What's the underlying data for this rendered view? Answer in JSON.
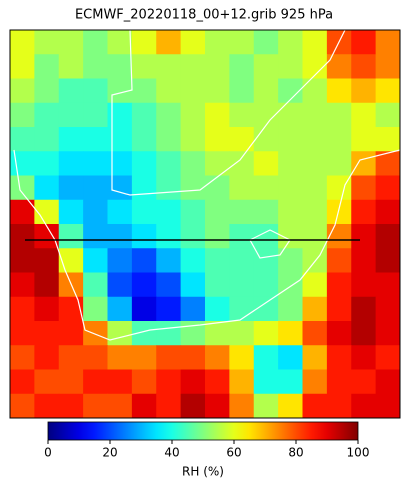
{
  "chart_data": {
    "type": "heatmap",
    "title": "ECMWF_20220118_00+12.grib 925 hPa",
    "colormap": "jet",
    "colorbar_label": "RH (%)",
    "clim": [
      0,
      100
    ],
    "cticks": [
      0,
      20,
      40,
      60,
      80,
      100
    ],
    "z": [
      [
        60,
        55,
        55,
        50,
        55,
        60,
        70,
        60,
        55,
        55,
        50,
        55,
        60,
        80,
        85,
        75
      ],
      [
        60,
        50,
        55,
        50,
        50,
        55,
        55,
        55,
        55,
        50,
        55,
        55,
        60,
        75,
        80,
        75
      ],
      [
        55,
        50,
        45,
        45,
        50,
        50,
        55,
        55,
        55,
        50,
        55,
        50,
        55,
        65,
        70,
        65
      ],
      [
        50,
        45,
        45,
        45,
        40,
        45,
        50,
        55,
        60,
        55,
        55,
        55,
        55,
        55,
        60,
        55
      ],
      [
        45,
        45,
        40,
        40,
        40,
        45,
        50,
        55,
        60,
        60,
        55,
        55,
        55,
        55,
        60,
        60
      ],
      [
        40,
        40,
        35,
        35,
        35,
        40,
        45,
        50,
        55,
        55,
        60,
        55,
        55,
        55,
        70,
        80
      ],
      [
        50,
        35,
        30,
        30,
        30,
        40,
        45,
        50,
        50,
        55,
        55,
        55,
        55,
        60,
        80,
        85
      ],
      [
        90,
        60,
        35,
        30,
        35,
        40,
        40,
        45,
        50,
        50,
        50,
        55,
        55,
        65,
        85,
        90
      ],
      [
        95,
        90,
        45,
        30,
        30,
        35,
        40,
        45,
        50,
        45,
        45,
        55,
        55,
        75,
        90,
        95
      ],
      [
        95,
        95,
        60,
        35,
        25,
        20,
        30,
        40,
        45,
        45,
        45,
        50,
        55,
        80,
        90,
        95
      ],
      [
        90,
        95,
        75,
        45,
        20,
        15,
        20,
        35,
        45,
        45,
        45,
        50,
        60,
        85,
        90,
        90
      ],
      [
        85,
        90,
        85,
        50,
        30,
        10,
        15,
        25,
        40,
        45,
        45,
        50,
        70,
        85,
        95,
        90
      ],
      [
        85,
        85,
        85,
        75,
        55,
        45,
        45,
        50,
        55,
        55,
        60,
        65,
        80,
        90,
        95,
        90
      ],
      [
        80,
        85,
        80,
        80,
        75,
        75,
        80,
        80,
        75,
        65,
        40,
        35,
        70,
        85,
        90,
        85
      ],
      [
        85,
        80,
        80,
        85,
        85,
        80,
        85,
        90,
        85,
        70,
        40,
        40,
        75,
        85,
        85,
        90
      ],
      [
        80,
        85,
        85,
        80,
        80,
        90,
        85,
        95,
        90,
        75,
        55,
        65,
        85,
        85,
        90,
        90
      ]
    ]
  }
}
